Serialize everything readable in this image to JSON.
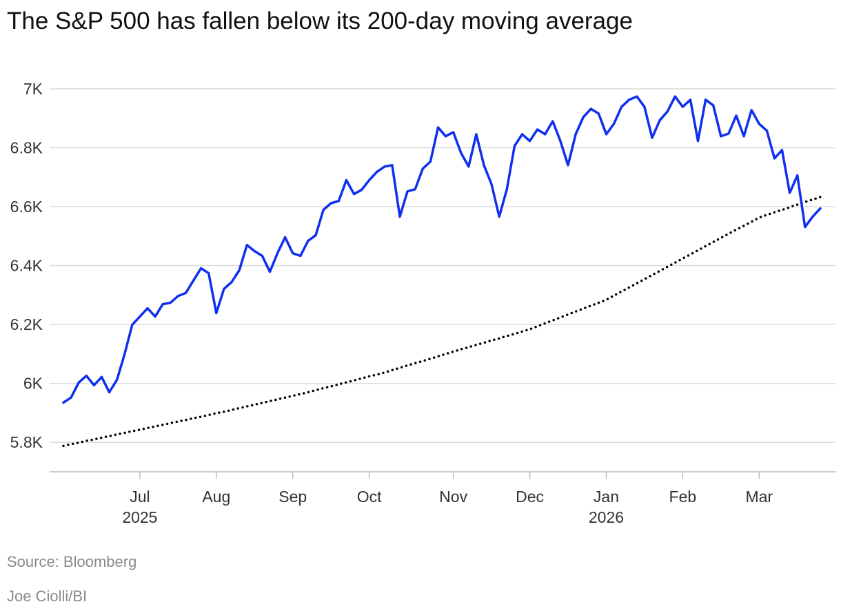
{
  "chart_data": {
    "type": "line",
    "title": "The S&P 500 has fallen below its 200-day moving average",
    "source": "Source: Bloomberg",
    "credit": "Joe Ciolli/BI",
    "categories": [
      null,
      null,
      null,
      null,
      null,
      null,
      null,
      null,
      null,
      null,
      "Jul",
      null,
      null,
      null,
      null,
      null,
      null,
      null,
      null,
      null,
      "Aug",
      null,
      null,
      null,
      null,
      null,
      null,
      null,
      null,
      null,
      "Sep",
      null,
      null,
      null,
      null,
      null,
      null,
      null,
      null,
      null,
      "Oct",
      null,
      null,
      null,
      null,
      null,
      null,
      null,
      null,
      null,
      null,
      "Nov",
      null,
      null,
      null,
      null,
      null,
      null,
      null,
      null,
      null,
      "Dec",
      null,
      null,
      null,
      null,
      null,
      null,
      null,
      null,
      null,
      "Jan",
      null,
      null,
      null,
      null,
      null,
      null,
      null,
      null,
      null,
      "Feb",
      null,
      null,
      null,
      null,
      null,
      null,
      null,
      null,
      null,
      "Mar",
      null,
      null,
      null,
      null,
      null,
      null,
      null,
      null
    ],
    "category_years": [
      null,
      null,
      null,
      null,
      null,
      null,
      null,
      null,
      null,
      null,
      "2025",
      null,
      null,
      null,
      null,
      null,
      null,
      null,
      null,
      null,
      null,
      null,
      null,
      null,
      null,
      null,
      null,
      null,
      null,
      null,
      null,
      null,
      null,
      null,
      null,
      null,
      null,
      null,
      null,
      null,
      null,
      null,
      null,
      null,
      null,
      null,
      null,
      null,
      null,
      null,
      null,
      null,
      null,
      null,
      null,
      null,
      null,
      null,
      null,
      null,
      null,
      null,
      null,
      null,
      null,
      null,
      null,
      null,
      null,
      null,
      null,
      "2026",
      null,
      null,
      null,
      null,
      null,
      null,
      null,
      null,
      null,
      null,
      null,
      null,
      null,
      null,
      null,
      null,
      null,
      null,
      null,
      null,
      null,
      null,
      null,
      null,
      null,
      null,
      null,
      null
    ],
    "series": [
      {
        "color": "#0f2ff0",
        "dash": "solid",
        "values": [
          5935,
          5952,
          6003,
          6026,
          5994,
          6022,
          5970,
          6012,
          6099,
          6199,
          6227,
          6255,
          6227,
          6269,
          6274,
          6297,
          6307,
          6349,
          6391,
          6374,
          6239,
          6321,
          6344,
          6384,
          6470,
          6449,
          6433,
          6379,
          6442,
          6496,
          6442,
          6433,
          6484,
          6503,
          6589,
          6612,
          6619,
          6690,
          6643,
          6657,
          6690,
          6718,
          6736,
          6741,
          6566,
          6652,
          6659,
          6729,
          6753,
          6869,
          6839,
          6853,
          6783,
          6736,
          6846,
          6741,
          6676,
          6566,
          6659,
          6806,
          6846,
          6823,
          6862,
          6846,
          6890,
          6823,
          6741,
          6846,
          6904,
          6932,
          6916,
          6846,
          6881,
          6939,
          6963,
          6974,
          6939,
          6834,
          6893,
          6923,
          6974,
          6939,
          6963,
          6823,
          6963,
          6944,
          6839,
          6848,
          6909,
          6839,
          6928,
          6881,
          6858,
          6764,
          6792,
          6647,
          6706,
          6531,
          6566,
          6594
        ]
      },
      {
        "color": "#000000",
        "dash": "dotted",
        "values": [
          5788,
          5794,
          5799,
          5805,
          5810,
          5816,
          5821,
          5827,
          5832,
          5838,
          5843,
          5849,
          5854,
          5860,
          5865,
          5871,
          5876,
          5882,
          5887,
          5893,
          5899,
          5904,
          5910,
          5916,
          5922,
          5928,
          5934,
          5940,
          5946,
          5952,
          5958,
          5964,
          5970,
          5977,
          5984,
          5990,
          5997,
          6004,
          6010,
          6017,
          6024,
          6030,
          6037,
          6045,
          6053,
          6061,
          6069,
          6076,
          6084,
          6092,
          6100,
          6108,
          6116,
          6123,
          6131,
          6138,
          6146,
          6153,
          6161,
          6168,
          6176,
          6184,
          6194,
          6204,
          6214,
          6224,
          6234,
          6244,
          6254,
          6264,
          6274,
          6284,
          6298,
          6312,
          6326,
          6340,
          6354,
          6368,
          6382,
          6396,
          6410,
          6424,
          6438,
          6452,
          6466,
          6480,
          6494,
          6508,
          6522,
          6535,
          6549,
          6563,
          6572,
          6581,
          6589,
          6598,
          6607,
          6616,
          6624,
          6633
        ]
      }
    ],
    "ylim": [
      5700,
      7050
    ],
    "yticks": [
      {
        "value": 5800,
        "label": "5.8K"
      },
      {
        "value": 6000,
        "label": "6K"
      },
      {
        "value": 6200,
        "label": "6.2K"
      },
      {
        "value": 6400,
        "label": "6.4K"
      },
      {
        "value": 6600,
        "label": "6.6K"
      },
      {
        "value": 6800,
        "label": "6.8K"
      },
      {
        "value": 7000,
        "label": "7K"
      }
    ],
    "grid": true
  }
}
